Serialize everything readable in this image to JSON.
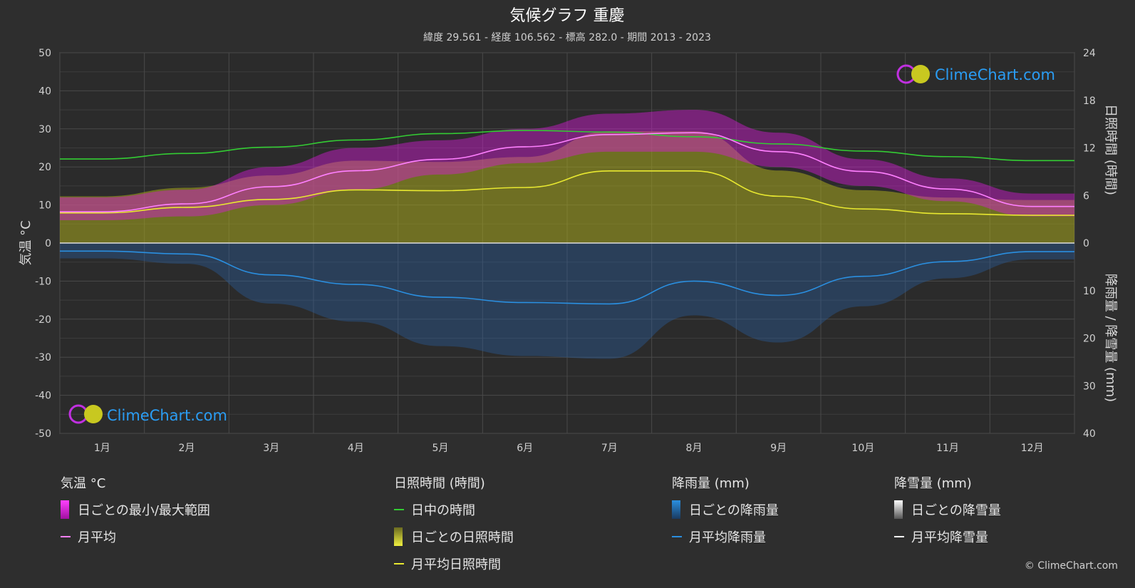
{
  "title": "気候グラフ 重慶",
  "subtitle": "緯度 29.561 - 経度 106.562 - 標高 282.0 - 期間 2013 - 2023",
  "logo_text": "ClimeChart.com",
  "copyright": "© ClimeChart.com",
  "colors": {
    "background": "#2e2e2e",
    "temp_range": "#d81bd8",
    "temp_avg": "#ff80ff",
    "daylight": "#33cc33",
    "sunshine_fill": "#a8a81e",
    "sunshine_avg": "#e8e830",
    "rain_fill": "#2a5fa0",
    "rain_avg": "#2a8fe0",
    "snow_avg": "#ffffff",
    "logo_text": "#2a9df4"
  },
  "chart_data": {
    "type": "line",
    "categories": [
      "1月",
      "2月",
      "3月",
      "4月",
      "5月",
      "6月",
      "7月",
      "8月",
      "9月",
      "10月",
      "11月",
      "12月"
    ],
    "axes": {
      "left": {
        "label": "気温 °C",
        "ticks": [
          "50",
          "40",
          "30",
          "20",
          "10",
          "0",
          "-10",
          "-20",
          "-30",
          "-40",
          "-50"
        ],
        "range": [
          -50,
          50
        ]
      },
      "right_top": {
        "label": "日照時間 (時間)",
        "ticks": [
          "24",
          "18",
          "12",
          "6",
          "0"
        ],
        "range": [
          0,
          24
        ]
      },
      "right_bottom": {
        "label": "降雨量 / 降雪量 (mm)",
        "ticks": [
          "10",
          "20",
          "30",
          "40"
        ],
        "range": [
          0,
          40
        ]
      }
    },
    "series": [
      {
        "name": "日中の時間",
        "axis": "sunshine",
        "values": [
          10.6,
          11.3,
          12.1,
          13.0,
          13.8,
          14.2,
          14.0,
          13.4,
          12.5,
          11.6,
          10.9,
          10.4
        ]
      },
      {
        "name": "月平均日照時間",
        "axis": "sunshine",
        "values": [
          3.8,
          4.5,
          5.5,
          6.7,
          6.6,
          7.0,
          9.1,
          9.1,
          5.9,
          4.3,
          3.7,
          3.5
        ]
      },
      {
        "name": "月平均",
        "axis": "temp",
        "values": [
          8.2,
          10.3,
          14.8,
          19.0,
          22.0,
          25.3,
          28.5,
          29.0,
          24.0,
          18.8,
          14.2,
          9.6
        ]
      },
      {
        "name": "月平均降雨量",
        "axis": "rain",
        "values": [
          1.7,
          2.3,
          6.7,
          8.7,
          11.4,
          12.5,
          12.8,
          8.0,
          11.0,
          7.0,
          3.9,
          1.8
        ]
      },
      {
        "name": "月平均降雪量",
        "axis": "rain",
        "values": [
          0,
          0,
          0,
          0,
          0,
          0,
          0,
          0,
          0,
          0,
          0,
          0
        ]
      }
    ],
    "temp_range": {
      "min": [
        6,
        7,
        10,
        14,
        18,
        21,
        24,
        24,
        20,
        15,
        11,
        7
      ],
      "max": [
        12,
        14,
        20,
        25,
        27,
        30,
        34,
        35,
        29,
        22,
        17,
        13
      ]
    },
    "legend_placement": "bottom",
    "grid": true
  },
  "legend": {
    "temp": {
      "title": "気温 °C",
      "items": [
        "日ごとの最小/最大範囲",
        "月平均"
      ]
    },
    "sun": {
      "title": "日照時間 (時間)",
      "items": [
        "日中の時間",
        "日ごとの日照時間",
        "月平均日照時間"
      ]
    },
    "rain": {
      "title": "降雨量 (mm)",
      "items": [
        "日ごとの降雨量",
        "月平均降雨量"
      ]
    },
    "snow": {
      "title": "降雪量 (mm)",
      "items": [
        "日ごとの降雪量",
        "月平均降雪量"
      ]
    }
  }
}
